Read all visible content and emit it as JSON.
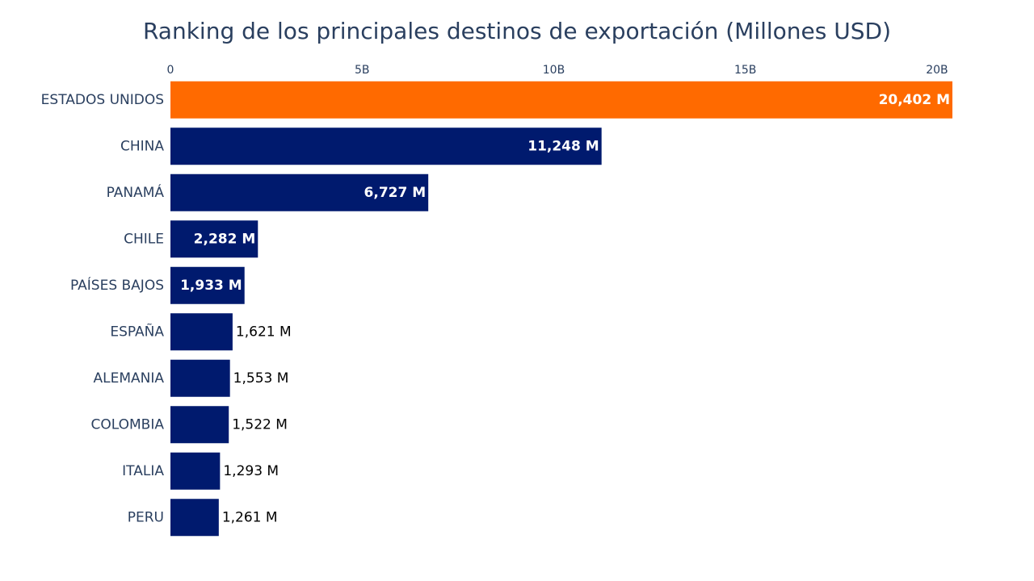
{
  "chart_data": {
    "type": "bar",
    "orientation": "horizontal",
    "title": "Ranking de los principales destinos de exportación (Millones USD)",
    "xlabel": "",
    "ylabel": "",
    "x_axis_position": "top",
    "xlim": [
      0,
      20402
    ],
    "x_ticks": [
      {
        "value": 0,
        "label": "0"
      },
      {
        "value": 5000,
        "label": "5B"
      },
      {
        "value": 10000,
        "label": "10B"
      },
      {
        "value": 15000,
        "label": "15B"
      },
      {
        "value": 20000,
        "label": "20B"
      }
    ],
    "grid": false,
    "legend": "none",
    "categories": [
      "ESTADOS UNIDOS",
      "CHINA",
      "PANAMÁ",
      "CHILE",
      "PAÍSES BAJOS",
      "ESPAÑA",
      "ALEMANIA",
      "COLOMBIA",
      "ITALIA",
      "PERU"
    ],
    "values": [
      20402,
      11248,
      6727,
      2282,
      1933,
      1621,
      1553,
      1522,
      1293,
      1261
    ],
    "data_labels": [
      "20,402 M",
      "11,248 M",
      "6,727 M",
      "2,282 M",
      "1,933 M",
      "1,621 M",
      "1,553 M",
      "1,522 M",
      "1,293 M",
      "1,261 M"
    ],
    "data_label_inside": [
      true,
      true,
      true,
      true,
      true,
      false,
      false,
      false,
      false,
      false
    ],
    "highlight_index": 0,
    "colors": {
      "highlight": "#ff6a00",
      "bar": "#001a6e",
      "text": "#2a3f5f",
      "label_inside": "#ffffff",
      "label_outside": "#000000"
    }
  }
}
